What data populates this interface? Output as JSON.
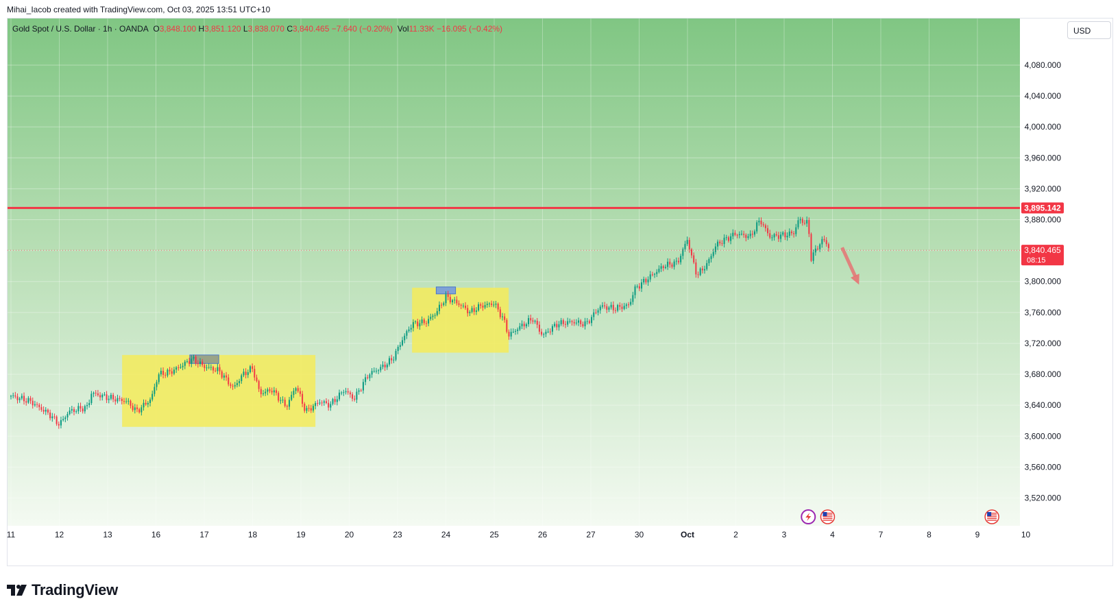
{
  "credit": "Mihai_Iacob created with TradingView.com, Oct 03, 2025 13:51 UTC+10",
  "legend": {
    "symbol": "Gold Spot / U.S. Dollar · 1h · OANDA",
    "o_label": "O",
    "o_value": "3,848.100",
    "h_label": "H",
    "h_value": "3,851.120",
    "l_label": "L",
    "l_value": "3,838.070",
    "c_label": "C",
    "c_value": "3,840.465",
    "change": "−7.640 (−0.20%)",
    "vol_label": "Vol",
    "vol_value": "11.33K",
    "vol_change": "−16.095 (−0.42%)"
  },
  "currency_button": "USD",
  "brand": {
    "name": "TradingView",
    "logo_icon": "tradingview-logo-icon"
  },
  "colors": {
    "up": "#089981",
    "down": "#f23645",
    "resistance": "#f23645",
    "zone": "#f5eb5a"
  },
  "chart_data": {
    "type": "candlestick",
    "instrument": "Gold Spot / U.S. Dollar",
    "timeframe": "1h",
    "broker": "OANDA",
    "y_axis": {
      "ticks": [
        3520,
        3560,
        3600,
        3640,
        3680,
        3720,
        3760,
        3800,
        3840,
        3880,
        3920,
        3960,
        4000,
        4040,
        4080
      ],
      "tick_labels": [
        "3,520.000",
        "3,560.000",
        "3,600.000",
        "3,640.000",
        "3,680.000",
        "3,720.000",
        "3,760.000",
        "3,800.000",
        "3,840.000",
        "3,880.000",
        "3,920.000",
        "3,960.000",
        "4,000.000",
        "4,040.000",
        "4,080.000"
      ],
      "visible_labels": [
        "3,520.000",
        "3,560.000",
        "3,600.000",
        "3,640.000",
        "3,680.000",
        "3,720.000",
        "3,760.000",
        "3,800.000",
        "3,880.000",
        "3,920.000",
        "3,960.000",
        "4,000.000",
        "4,040.000",
        "4,080.000"
      ],
      "ylim": [
        3490,
        4105
      ]
    },
    "x_axis": {
      "labels": [
        "11",
        "12",
        "13",
        "16",
        "17",
        "18",
        "19",
        "20",
        "23",
        "24",
        "25",
        "26",
        "27",
        "30",
        "Oct",
        "2",
        "3",
        "4",
        "7",
        "8",
        "9",
        "10"
      ],
      "range": [
        0,
        21.15
      ]
    },
    "price_path": [
      [
        0,
        3652
      ],
      [
        0.4,
        3645
      ],
      [
        0.8,
        3628
      ],
      [
        1.0,
        3615
      ],
      [
        1.2,
        3632
      ],
      [
        1.6,
        3638
      ],
      [
        1.65,
        3656
      ],
      [
        2.0,
        3650
      ],
      [
        2.4,
        3645
      ],
      [
        2.6,
        3632
      ],
      [
        2.9,
        3648
      ],
      [
        3.05,
        3680
      ],
      [
        3.3,
        3683
      ],
      [
        3.5,
        3690
      ],
      [
        3.75,
        3700
      ],
      [
        4.0,
        3690
      ],
      [
        4.3,
        3685
      ],
      [
        4.6,
        3662
      ],
      [
        4.8,
        3680
      ],
      [
        5.0,
        3688
      ],
      [
        5.15,
        3655
      ],
      [
        5.4,
        3660
      ],
      [
        5.7,
        3638
      ],
      [
        5.9,
        3665
      ],
      [
        6.1,
        3632
      ],
      [
        6.4,
        3645
      ],
      [
        6.6,
        3640
      ],
      [
        6.9,
        3660
      ],
      [
        7.1,
        3648
      ],
      [
        7.4,
        3680
      ],
      [
        7.7,
        3690
      ],
      [
        7.9,
        3700
      ],
      [
        8.1,
        3725
      ],
      [
        8.3,
        3745
      ],
      [
        8.6,
        3748
      ],
      [
        8.8,
        3760
      ],
      [
        9.0,
        3780
      ],
      [
        9.3,
        3770
      ],
      [
        9.5,
        3760
      ],
      [
        9.7,
        3768
      ],
      [
        10.0,
        3772
      ],
      [
        10.2,
        3750
      ],
      [
        10.3,
        3730
      ],
      [
        10.5,
        3740
      ],
      [
        10.8,
        3752
      ],
      [
        11.0,
        3730
      ],
      [
        11.3,
        3745
      ],
      [
        11.6,
        3748
      ],
      [
        11.9,
        3745
      ],
      [
        12.2,
        3768
      ],
      [
        12.5,
        3765
      ],
      [
        12.8,
        3770
      ],
      [
        12.9,
        3790
      ],
      [
        13.2,
        3805
      ],
      [
        13.5,
        3820
      ],
      [
        13.8,
        3825
      ],
      [
        14.0,
        3855
      ],
      [
        14.1,
        3828
      ],
      [
        14.2,
        3808
      ],
      [
        14.4,
        3822
      ],
      [
        14.6,
        3848
      ],
      [
        14.8,
        3855
      ],
      [
        15.0,
        3862
      ],
      [
        15.3,
        3858
      ],
      [
        15.5,
        3880
      ],
      [
        15.7,
        3858
      ],
      [
        16.0,
        3860
      ],
      [
        16.2,
        3863
      ],
      [
        16.3,
        3880
      ],
      [
        16.5,
        3875
      ],
      [
        16.55,
        3830
      ],
      [
        16.8,
        3855
      ],
      [
        16.95,
        3843
      ]
    ],
    "last_price": "3,840.465",
    "countdown": "08:15",
    "resistance_level": {
      "value": 3895.142,
      "label": "3,895.142"
    },
    "highlight_zones": [
      {
        "x_from": 2.3,
        "x_to": 6.3,
        "y_from": 3612,
        "y_to": 3705
      },
      {
        "x_from": 8.3,
        "x_to": 10.3,
        "y_from": 3708,
        "y_to": 3792
      }
    ],
    "top_markers": [
      {
        "x_from": 3.7,
        "x_to": 4.3,
        "y_from": 3694,
        "y_to": 3705
      },
      {
        "x_from": 8.8,
        "x_to": 9.2,
        "y_from": 3784,
        "y_to": 3793
      }
    ],
    "projection_arrow": {
      "from": [
        17.2,
        3844
      ],
      "to": [
        17.55,
        3796
      ],
      "direction": "down"
    },
    "event_icons": [
      {
        "name": "earnings-flash-icon",
        "x": 16.5
      },
      {
        "name": "us-flag-icon",
        "x": 16.9
      },
      {
        "name": "us-flag-icon",
        "x": 20.3
      }
    ]
  }
}
